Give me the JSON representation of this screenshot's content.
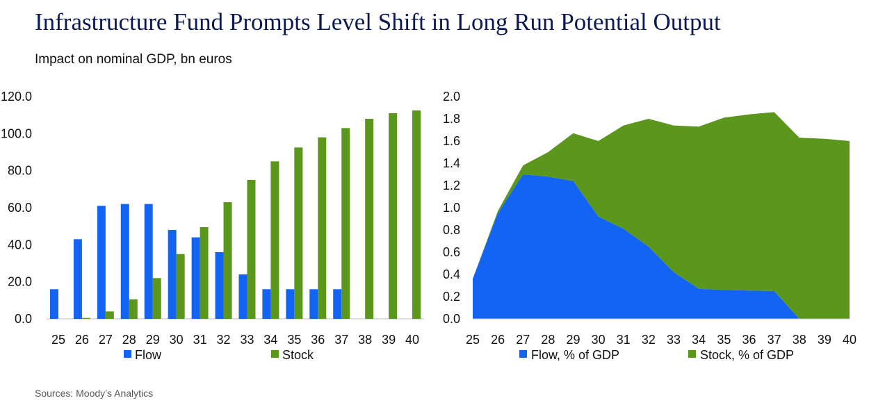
{
  "title": "Infrastructure Fund Prompts Level Shift in Long Run Potential Output",
  "subtitle": "Impact on nominal GDP, bn euros",
  "source": "Sources: Moody’s Analytics",
  "colors": {
    "flow": "#1464f4",
    "stock": "#5b961d"
  },
  "chart_data": [
    {
      "type": "bar",
      "categories": [
        "25",
        "26",
        "27",
        "28",
        "29",
        "30",
        "31",
        "32",
        "33",
        "34",
        "35",
        "36",
        "37",
        "38",
        "39",
        "40"
      ],
      "yticks": [
        "0.0",
        "20.0",
        "40.0",
        "60.0",
        "80.0",
        "100.0",
        "120.0"
      ],
      "ylim": [
        0,
        120
      ],
      "legend_position": "bottom",
      "series": [
        {
          "name": "Flow",
          "values": [
            16,
            43,
            61,
            62,
            62,
            48,
            44,
            36,
            24,
            16,
            16,
            16,
            16,
            0,
            0,
            0
          ]
        },
        {
          "name": "Stock",
          "values": [
            0,
            0.5,
            4,
            10.5,
            22,
            35,
            49.5,
            63,
            75,
            85,
            92.5,
            98,
            103,
            108,
            111,
            112.5
          ]
        }
      ]
    },
    {
      "type": "area",
      "stacked": true,
      "categories": [
        "25",
        "26",
        "27",
        "28",
        "29",
        "30",
        "31",
        "32",
        "33",
        "34",
        "35",
        "36",
        "37",
        "38",
        "39",
        "40"
      ],
      "yticks": [
        "0.0",
        "0.2",
        "0.4",
        "0.6",
        "0.8",
        "1.0",
        "1.2",
        "1.4",
        "1.6",
        "1.8",
        "2.0"
      ],
      "ylim": [
        0,
        2.0
      ],
      "legend_position": "bottom",
      "series": [
        {
          "name": "Flow, % of GDP",
          "values": [
            0.36,
            0.95,
            1.3,
            1.28,
            1.24,
            0.92,
            0.81,
            0.65,
            0.42,
            0.27,
            0.26,
            0.255,
            0.25,
            0,
            0,
            0
          ]
        },
        {
          "name": "Stock, % of GDP",
          "values": [
            0,
            0.02,
            0.08,
            0.22,
            0.43,
            0.68,
            0.93,
            1.15,
            1.32,
            1.46,
            1.55,
            1.585,
            1.61,
            1.63,
            1.62,
            1.6
          ]
        }
      ]
    }
  ]
}
